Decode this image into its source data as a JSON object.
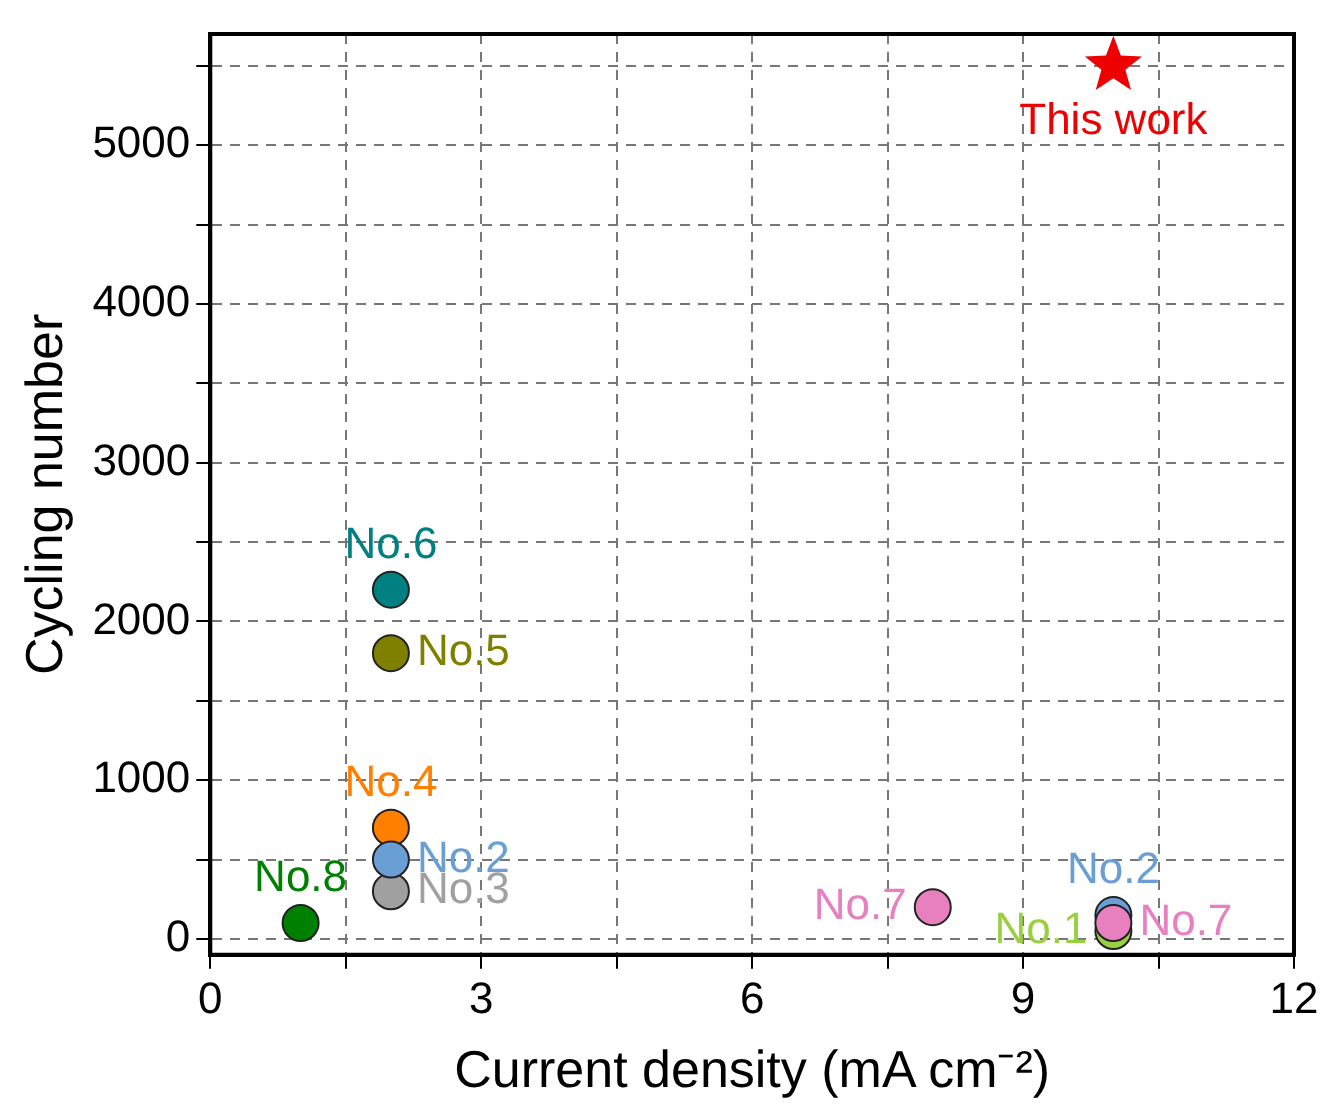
{
  "chart_data": {
    "type": "scatter",
    "xlabel": "Current density (mA cm⁻²)",
    "ylabel": "Cycling number",
    "xlim": [
      0,
      12
    ],
    "ylim": [
      -100,
      5700
    ],
    "xticks": [
      0,
      {
        "value": 1.5,
        "label": null
      },
      3,
      {
        "value": 4.5,
        "label": null
      },
      6,
      {
        "value": 7.5,
        "label": null
      },
      9,
      {
        "value": 10.5,
        "label": null
      },
      12
    ],
    "yticks": [
      0,
      {
        "value": 500,
        "label": null
      },
      1000,
      {
        "value": 1500,
        "label": null
      },
      2000,
      {
        "value": 2500,
        "label": null
      },
      3000,
      {
        "value": 3500,
        "label": null
      },
      4000,
      {
        "value": 4500,
        "label": null
      },
      5000,
      {
        "value": 5500,
        "label": null
      }
    ],
    "grid": true,
    "legend": false,
    "marker": "circle",
    "series": [
      {
        "name": "No.1",
        "color": "#99d040",
        "x": [
          10
        ],
        "values": [
          50
        ]
      },
      {
        "name": "No.2",
        "color": "#6a9fd6",
        "x": [
          2,
          10
        ],
        "values": [
          500,
          150
        ]
      },
      {
        "name": "No.3",
        "color": "#a0a0a0",
        "x": [
          2
        ],
        "values": [
          300
        ]
      },
      {
        "name": "No.4",
        "color": "#ff8000",
        "x": [
          2
        ],
        "values": [
          700
        ]
      },
      {
        "name": "No.5",
        "color": "#808000",
        "x": [
          2
        ],
        "values": [
          1800
        ]
      },
      {
        "name": "No.6",
        "color": "#008080",
        "x": [
          2
        ],
        "values": [
          2200
        ]
      },
      {
        "name": "No.7",
        "color": "#e880c0",
        "x": [
          8,
          10
        ],
        "values": [
          200,
          100
        ]
      },
      {
        "name": "No.8",
        "color": "#008000",
        "x": [
          1
        ],
        "values": [
          100
        ]
      },
      {
        "name": "This work",
        "color": "#ee0000",
        "x": [
          10
        ],
        "values": [
          5500
        ],
        "marker": "star"
      }
    ]
  }
}
